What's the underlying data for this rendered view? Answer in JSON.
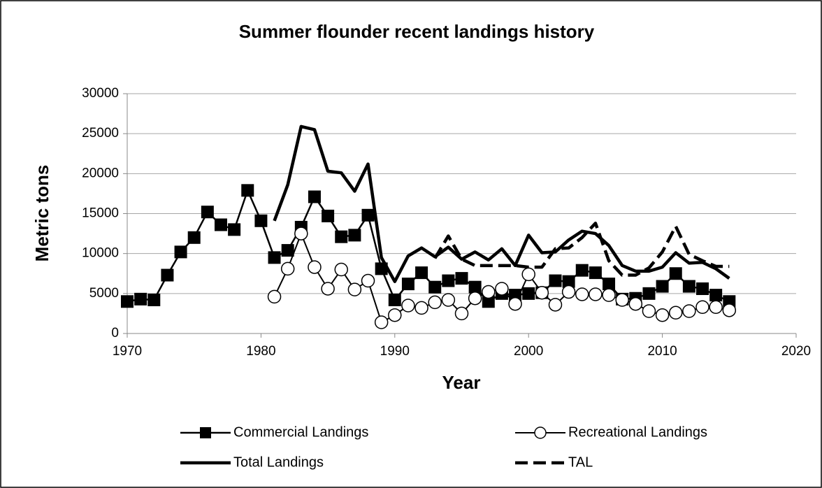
{
  "chart_data": {
    "type": "line",
    "title": "Summer flounder recent landings history",
    "x_label": "Year",
    "y_label": "Metric tons",
    "xlim": [
      1970,
      2020
    ],
    "xticks": [
      1970,
      1980,
      1990,
      2000,
      2010,
      2020
    ],
    "ylim": [
      0,
      30000
    ],
    "yticks": [
      0,
      5000,
      10000,
      15000,
      20000,
      25000,
      30000
    ],
    "grid": true,
    "legend": "bottom",
    "series": [
      {
        "name": "Commercial Landings",
        "color": "#000000",
        "marker": "square",
        "dash": false,
        "line_width": 2.5,
        "x": [
          1970,
          1971,
          1972,
          1973,
          1974,
          1975,
          1976,
          1977,
          1978,
          1979,
          1980,
          1981,
          1982,
          1983,
          1984,
          1985,
          1986,
          1987,
          1988,
          1989,
          1990,
          1991,
          1992,
          1993,
          1994,
          1995,
          1996,
          1997,
          1998,
          1999,
          2000,
          2001,
          2002,
          2003,
          2004,
          2005,
          2006,
          2007,
          2008,
          2009,
          2010,
          2011,
          2012,
          2013,
          2014,
          2015
        ],
        "values": [
          4000,
          4300,
          4200,
          7300,
          10200,
          12000,
          15200,
          13600,
          13000,
          17900,
          14100,
          9500,
          10400,
          13300,
          17100,
          14700,
          12100,
          12300,
          14800,
          8100,
          4200,
          6200,
          7600,
          5800,
          6600,
          6900,
          5800,
          4000,
          5000,
          4800,
          5000,
          5100,
          6600,
          6500,
          7900,
          7600,
          6200,
          4300,
          4400,
          5000,
          5900,
          7500,
          5900,
          5600,
          4800,
          4000
        ]
      },
      {
        "name": "Recreational Landings",
        "color": "#000000",
        "marker": "circle",
        "dash": false,
        "line_width": 2,
        "x": [
          1981,
          1982,
          1983,
          1984,
          1985,
          1986,
          1987,
          1988,
          1989,
          1990,
          1991,
          1992,
          1993,
          1994,
          1995,
          1996,
          1997,
          1998,
          1999,
          2000,
          2001,
          2002,
          2003,
          2004,
          2005,
          2006,
          2007,
          2008,
          2009,
          2010,
          2011,
          2012,
          2013,
          2014,
          2015
        ],
        "values": [
          4600,
          8100,
          12500,
          8300,
          5600,
          8000,
          5500,
          6600,
          1400,
          2300,
          3500,
          3200,
          3900,
          4200,
          2500,
          4400,
          5200,
          5600,
          3700,
          7400,
          5100,
          3600,
          5200,
          4900,
          4900,
          4800,
          4200,
          3700,
          2800,
          2300,
          2600,
          2800,
          3300,
          3300,
          2900
        ]
      },
      {
        "name": "Total Landings",
        "color": "#000000",
        "marker": "none",
        "dash": false,
        "line_width": 4.5,
        "x": [
          1981,
          1982,
          1983,
          1984,
          1985,
          1986,
          1987,
          1988,
          1989,
          1990,
          1991,
          1992,
          1993,
          1994,
          1995,
          1996,
          1997,
          1998,
          1999,
          2000,
          2001,
          2002,
          2003,
          2004,
          2005,
          2006,
          2007,
          2008,
          2009,
          2010,
          2011,
          2012,
          2013,
          2014,
          2015
        ],
        "values": [
          14100,
          18600,
          25900,
          25500,
          20300,
          20100,
          17800,
          21200,
          9500,
          6500,
          9700,
          10700,
          9600,
          10800,
          9300,
          10200,
          9200,
          10600,
          8500,
          12300,
          10100,
          10200,
          11700,
          12800,
          12500,
          11000,
          8500,
          7800,
          7800,
          8300,
          10100,
          8800,
          8900,
          8100,
          6900
        ]
      },
      {
        "name": "TAL",
        "color": "#000000",
        "marker": "none",
        "dash": true,
        "line_width": 4.5,
        "x": [
          1993,
          1994,
          1995,
          1996,
          1997,
          1998,
          1999,
          2000,
          2001,
          2002,
          2003,
          2004,
          2005,
          2006,
          2007,
          2008,
          2009,
          2010,
          2011,
          2012,
          2013,
          2014,
          2015
        ],
        "values": [
          9400,
          12200,
          9300,
          8500,
          8500,
          8500,
          8500,
          8300,
          8300,
          10600,
          10700,
          12000,
          13800,
          9100,
          7300,
          7300,
          8200,
          10200,
          13400,
          9900,
          9100,
          8400,
          8400
        ]
      }
    ]
  }
}
